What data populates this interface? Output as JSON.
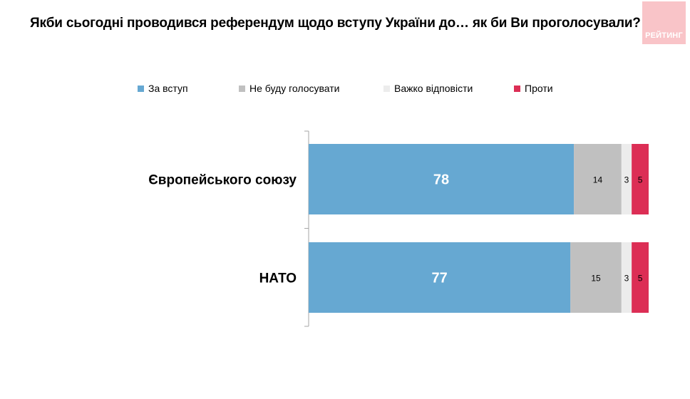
{
  "title": "Якби сьогодні проводився референдум щодо вступу України до… як би Ви проголосували?",
  "logo_text": "РЕЙТИНГ",
  "colors": {
    "for": "#66a8d2",
    "will_not_vote": "#c0c0c0",
    "hard_to_say": "#ececec",
    "against": "#dc2e55",
    "axis": "#a6a6a6",
    "logo_bg": "#f9c4c8"
  },
  "chart_data": {
    "type": "bar",
    "orientation": "horizontal",
    "stacked": true,
    "categories": [
      "Європейського союзу",
      "НАТО"
    ],
    "series": [
      {
        "name": "За вступ",
        "values": [
          78,
          77
        ]
      },
      {
        "name": "Не буду голосувати",
        "values": [
          14,
          15
        ]
      },
      {
        "name": "Важко відповісти",
        "values": [
          3,
          3
        ]
      },
      {
        "name": "Проти",
        "values": [
          5,
          5
        ]
      }
    ],
    "xlim": [
      0,
      100
    ],
    "grid": false,
    "legend_position": "top"
  }
}
